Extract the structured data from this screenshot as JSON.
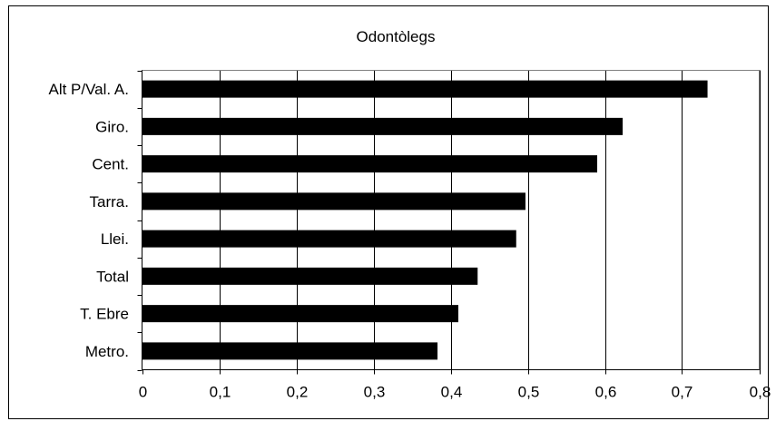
{
  "chart_data": {
    "type": "bar",
    "orientation": "horizontal",
    "title": "Odontòlegs",
    "xlabel": "",
    "ylabel": "",
    "categories": [
      "Alt P/Val. A.",
      "Giro.",
      "Cent.",
      "Tarra.",
      "Llei.",
      "Total",
      "T. Ebre",
      "Metro."
    ],
    "values": [
      0.733,
      0.623,
      0.59,
      0.497,
      0.485,
      0.435,
      0.41,
      0.383
    ],
    "xlim": [
      0,
      0.8
    ],
    "x_ticks": [
      0,
      0.1,
      0.2,
      0.3,
      0.4,
      0.5,
      0.6,
      0.7,
      0.8
    ],
    "x_tick_labels": [
      "0",
      "0,1",
      "0,2",
      "0,3",
      "0,4",
      "0,5",
      "0,6",
      "0,7",
      "0,8"
    ],
    "grid": "vertical",
    "legend": "none",
    "bar_color": "#000000",
    "grid_color": "#000000"
  }
}
